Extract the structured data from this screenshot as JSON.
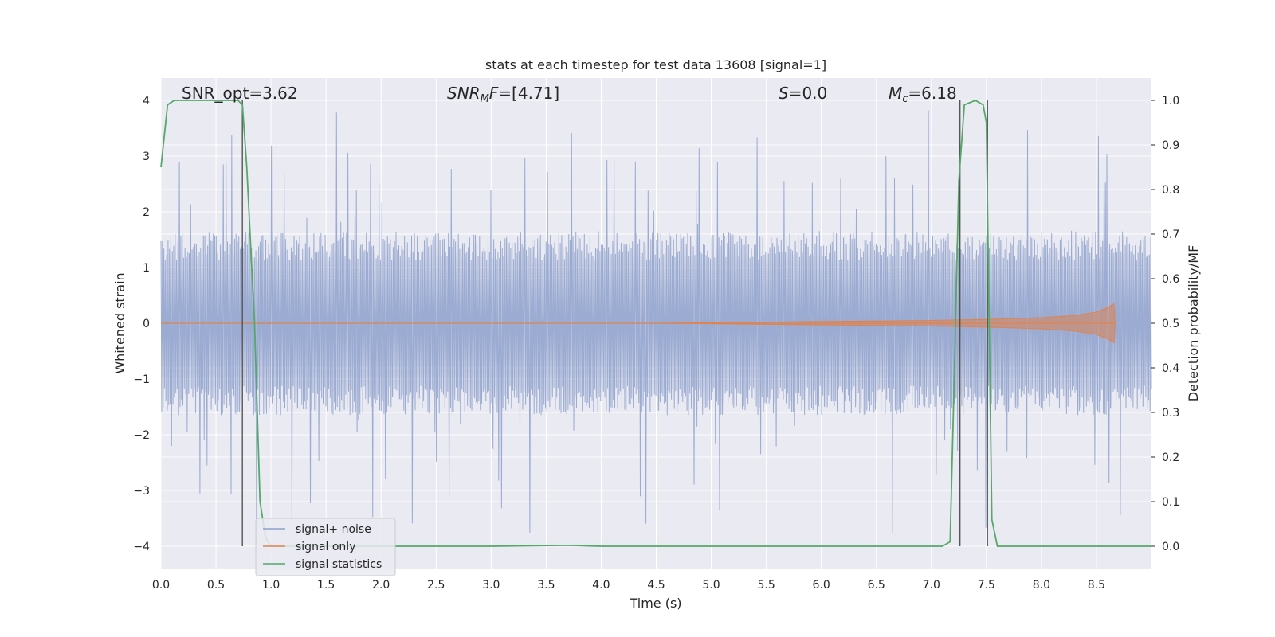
{
  "chart_data": {
    "type": "line",
    "title": "stats at each timestep for test data 13608 [signal=1]",
    "xlabel": "Time (s)",
    "ylabel_left": "Whitened strain",
    "ylabel_right": "Detection probability/MF",
    "xlim": [
      0.0,
      9.0
    ],
    "ylim_left": [
      -4.4,
      4.4
    ],
    "ylim_right": [
      -0.05,
      1.05
    ],
    "x_ticks": [
      "0.0",
      "0.5",
      "1.0",
      "1.5",
      "2.0",
      "2.5",
      "3.0",
      "3.5",
      "4.0",
      "4.5",
      "5.0",
      "5.5",
      "6.0",
      "6.5",
      "7.0",
      "7.5",
      "8.0",
      "8.5"
    ],
    "y_left_ticks": [
      "−4",
      "−3",
      "−2",
      "−1",
      "0",
      "1",
      "2",
      "3",
      "4"
    ],
    "y_right_ticks": [
      "0.0",
      "0.1",
      "0.2",
      "0.3",
      "0.4",
      "0.5",
      "0.6",
      "0.7",
      "0.8",
      "0.9",
      "1.0"
    ],
    "grid": true,
    "background": "#eaeaf2",
    "annotations": {
      "snr_opt": "SNR_opt=3.62",
      "snr_mf": "=[4.71]",
      "s": "=0.0",
      "mc": "=6.18"
    },
    "vertical_lines_x": [
      0.74,
      7.26,
      7.51
    ],
    "legend_position": "lower left",
    "series": [
      {
        "name": "signal+ noise",
        "color": "#8da0cb",
        "envelope": {
          "x": [
            0.0,
            9.0
          ],
          "typical_abs": 1.5,
          "spike_max": 4.0
        }
      },
      {
        "name": "signal only",
        "color": "#dd8452",
        "x": [
          0.0,
          4.5,
          5.5,
          6.0,
          6.5,
          7.0,
          7.5,
          8.0,
          8.3,
          8.5,
          8.6,
          8.66,
          8.67
        ],
        "amplitude": [
          0.0,
          0.0,
          0.02,
          0.03,
          0.04,
          0.05,
          0.07,
          0.1,
          0.14,
          0.2,
          0.28,
          0.35,
          0.0
        ]
      },
      {
        "name": "signal statistics",
        "color": "#55a868",
        "x": [
          0.0,
          0.06,
          0.12,
          0.3,
          0.5,
          0.6,
          0.7,
          0.74,
          0.78,
          0.85,
          0.9,
          0.95,
          1.0,
          2.0,
          3.0,
          3.7,
          4.0,
          5.0,
          6.0,
          7.0,
          7.1,
          7.17,
          7.2,
          7.25,
          7.3,
          7.4,
          7.47,
          7.5,
          7.55,
          7.6,
          7.65,
          8.0,
          9.0
        ],
        "y": [
          0.85,
          0.99,
          1.0,
          1.0,
          1.0,
          1.0,
          1.0,
          0.99,
          0.85,
          0.5,
          0.1,
          0.02,
          0.0,
          0.0,
          0.0,
          0.002,
          0.0,
          0.0,
          0.0,
          0.0,
          0.0,
          0.01,
          0.3,
          0.82,
          0.99,
          1.0,
          0.99,
          0.95,
          0.06,
          0.0,
          0.0,
          0.0,
          0.0
        ]
      }
    ]
  }
}
